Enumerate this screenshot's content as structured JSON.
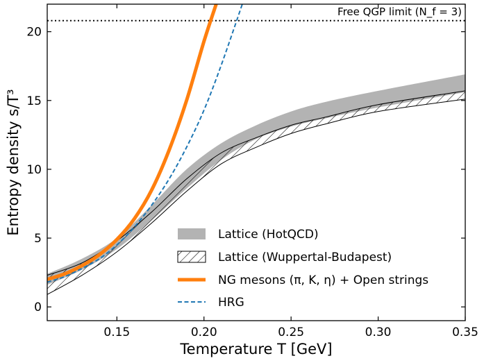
{
  "chart_data": {
    "type": "line",
    "title": "",
    "xlabel": "Temperature T [GeV]",
    "ylabel": "Entropy density s/T³",
    "xlim": [
      0.11,
      0.35
    ],
    "ylim": [
      -1.0,
      22.0
    ],
    "xticks": [
      0.15,
      0.2,
      0.25,
      0.3,
      0.35
    ],
    "xtick_labels": [
      "0.15",
      "0.20",
      "0.25",
      "0.30",
      "0.35"
    ],
    "yticks": [
      0,
      5,
      10,
      15,
      20
    ],
    "ytick_labels": [
      "0",
      "5",
      "10",
      "15",
      "20"
    ],
    "grid": false,
    "legend_position": "lower-right",
    "reference_line": {
      "value": 20.8,
      "label": "Free QGP limit (N_f = 3)"
    },
    "series": [
      {
        "name": "Lattice (HotQCD)",
        "kind": "band",
        "color": "#b3b3b3",
        "x": [
          0.11,
          0.13,
          0.15,
          0.17,
          0.19,
          0.21,
          0.23,
          0.25,
          0.27,
          0.3,
          0.35
        ],
        "lower": [
          1.6,
          2.7,
          4.2,
          6.3,
          8.6,
          10.7,
          12.2,
          13.1,
          13.7,
          14.5,
          15.6
        ],
        "upper": [
          2.4,
          3.5,
          5.0,
          7.4,
          10.0,
          11.9,
          13.2,
          14.2,
          14.9,
          15.7,
          16.9
        ]
      },
      {
        "name": "Lattice (Wuppertal-Budapest)",
        "kind": "hatched-band",
        "color": "#000000",
        "x": [
          0.11,
          0.13,
          0.15,
          0.17,
          0.19,
          0.21,
          0.23,
          0.25,
          0.27,
          0.3,
          0.35
        ],
        "lower": [
          0.9,
          2.3,
          4.0,
          6.1,
          8.4,
          10.4,
          11.6,
          12.6,
          13.3,
          14.2,
          15.1
        ],
        "upper": [
          2.3,
          3.2,
          4.8,
          6.9,
          9.3,
          11.2,
          12.3,
          13.2,
          13.8,
          14.7,
          15.7
        ]
      },
      {
        "name": "NG mesons (π, K, η) + Open strings",
        "kind": "line",
        "color": "#ff7f0e",
        "x": [
          0.11,
          0.12,
          0.13,
          0.14,
          0.15,
          0.16,
          0.17,
          0.18,
          0.19,
          0.2,
          0.207
        ],
        "y": [
          2.0,
          2.4,
          3.0,
          3.8,
          4.9,
          6.4,
          8.5,
          11.4,
          15.0,
          19.3,
          22.0
        ]
      },
      {
        "name": "HRG",
        "kind": "dashed-line",
        "color": "#1f77b4",
        "x": [
          0.11,
          0.12,
          0.13,
          0.14,
          0.15,
          0.16,
          0.17,
          0.18,
          0.19,
          0.2,
          0.21,
          0.222
        ],
        "y": [
          1.8,
          2.2,
          2.8,
          3.5,
          4.5,
          5.8,
          7.4,
          9.3,
          11.6,
          14.3,
          17.6,
          22.0
        ]
      }
    ]
  }
}
